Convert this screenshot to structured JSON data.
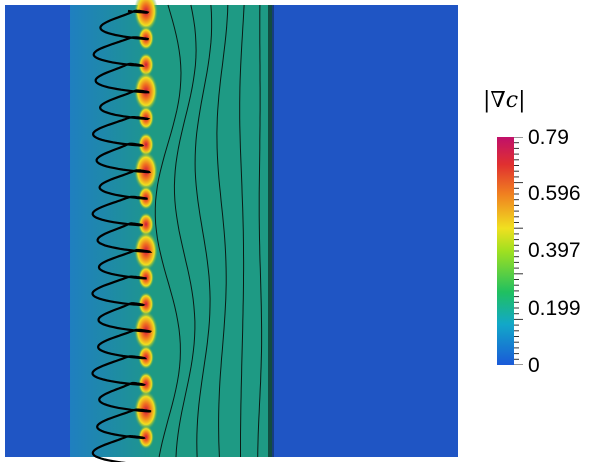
{
  "legend": {
    "title": "|∇c|",
    "tick_labels": [
      "0.79",
      "0.596",
      "0.397",
      "0.199",
      "0"
    ],
    "tick_values": [
      0.79,
      0.596,
      0.397,
      0.199,
      0
    ],
    "range": [
      0,
      0.79
    ]
  },
  "colors": {
    "background_region": "#1f55c4",
    "interior_region": "#1e9a84",
    "contour_line": "#000000",
    "high_gradient": "#d2143c",
    "mid_gradient": "#f0e020",
    "low_gradient": "#2fa060"
  }
}
